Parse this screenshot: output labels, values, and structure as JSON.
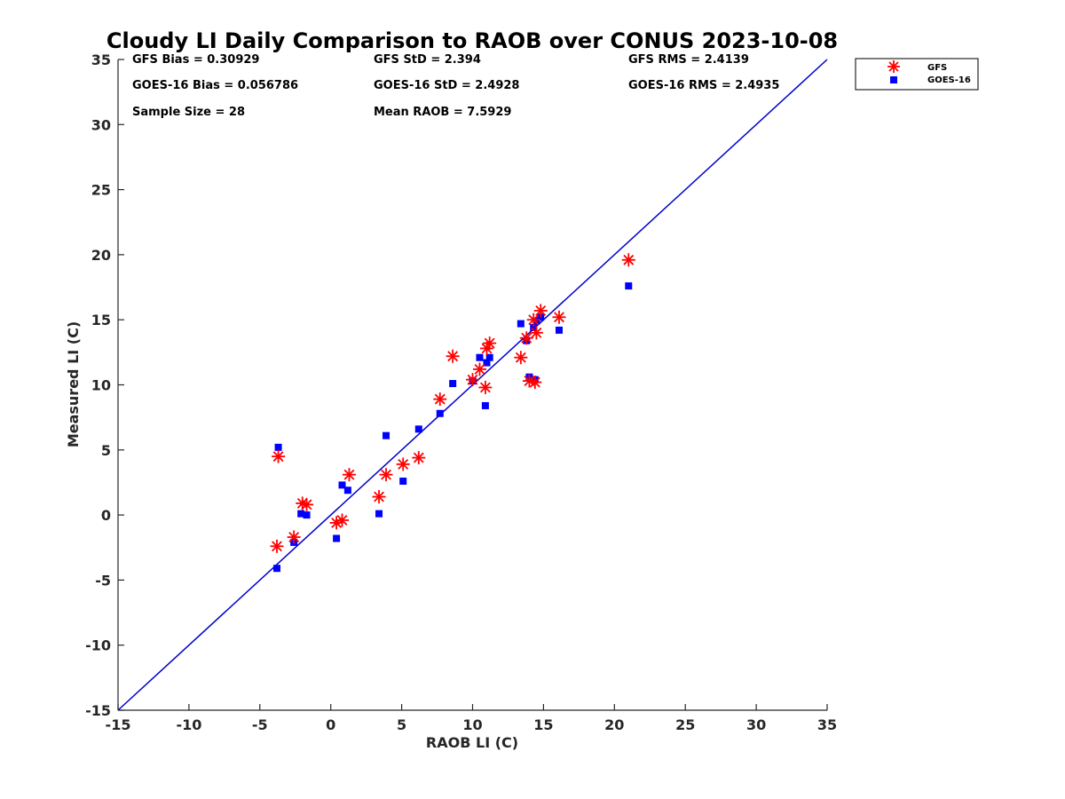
{
  "chart_data": {
    "type": "scatter",
    "title": "Cloudy LI Daily Comparison to RAOB over CONUS 2023-10-08",
    "xlabel": "RAOB LI (C)",
    "ylabel": "Measured LI (C)",
    "xlim": [
      -15,
      35
    ],
    "ylim": [
      -15,
      35
    ],
    "xticks": [
      -15,
      -10,
      -5,
      0,
      5,
      10,
      15,
      20,
      25,
      30,
      35
    ],
    "yticks": [
      -15,
      -10,
      -5,
      0,
      5,
      10,
      15,
      20,
      25,
      30,
      35
    ],
    "grid": false,
    "legend_position": "outside-top-right",
    "reference_line": {
      "name": "1:1 line",
      "from": [
        -15,
        -15
      ],
      "to": [
        35,
        35
      ],
      "color": "#0000cc"
    },
    "stats": {
      "gfs_bias": "GFS Bias = 0.30929",
      "gfs_std": "GFS StD = 2.394",
      "gfs_rms": "GFS RMS = 2.4139",
      "goes_bias": "GOES-16 Bias = 0.056786",
      "goes_std": "GOES-16 StD = 2.4928",
      "goes_rms": "GOES-16 RMS = 2.4935",
      "sample_size": "Sample Size = 28",
      "mean_raob": "Mean RAOB = 7.5929"
    },
    "series": [
      {
        "name": "GFS",
        "marker": "asterisk",
        "color": "#ff0000",
        "x": [
          -3.8,
          -3.7,
          -2.6,
          -2.0,
          -1.7,
          0.4,
          0.8,
          1.3,
          3.4,
          3.9,
          5.1,
          6.2,
          7.7,
          8.6,
          10.0,
          10.5,
          10.9,
          11.0,
          11.2,
          13.4,
          13.8,
          14.0,
          14.3,
          14.4,
          14.5,
          14.8,
          16.1,
          21.0
        ],
        "y": [
          -2.4,
          4.5,
          -1.7,
          0.9,
          0.8,
          -0.6,
          -0.4,
          3.1,
          1.4,
          3.1,
          3.9,
          4.4,
          8.9,
          12.2,
          10.4,
          11.2,
          9.8,
          12.8,
          13.2,
          12.1,
          13.6,
          10.3,
          15.0,
          10.2,
          14.0,
          15.7,
          15.2,
          19.6
        ]
      },
      {
        "name": "GOES-16",
        "marker": "square",
        "color": "#0000ff",
        "x": [
          -3.8,
          -3.7,
          -2.6,
          -2.1,
          -1.7,
          0.4,
          0.8,
          1.2,
          3.4,
          3.9,
          5.1,
          6.2,
          7.7,
          8.6,
          10.0,
          10.5,
          10.9,
          11.0,
          11.2,
          13.4,
          13.8,
          14.0,
          14.3,
          14.4,
          14.5,
          14.8,
          16.1,
          21.0
        ],
        "y": [
          -4.1,
          5.2,
          -2.1,
          0.1,
          0.0,
          -1.8,
          2.3,
          1.9,
          0.1,
          6.1,
          2.6,
          6.6,
          7.8,
          10.1,
          10.3,
          12.1,
          8.4,
          11.7,
          12.1,
          14.7,
          13.4,
          10.6,
          14.4,
          10.4,
          14.9,
          15.2,
          14.2,
          17.6
        ]
      }
    ]
  }
}
